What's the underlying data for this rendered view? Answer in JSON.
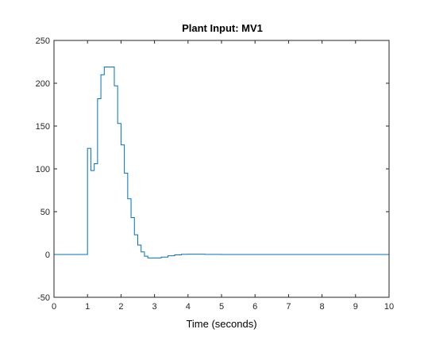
{
  "chart_data": {
    "type": "line",
    "step": true,
    "title": "Plant Input:  MV1",
    "xlabel": "Time (seconds)",
    "ylabel": "",
    "xlim": [
      0,
      10
    ],
    "ylim": [
      -50,
      250
    ],
    "xticks": [
      0,
      1,
      2,
      3,
      4,
      5,
      6,
      7,
      8,
      9,
      10
    ],
    "yticks": [
      -50,
      0,
      50,
      100,
      150,
      200,
      250
    ],
    "xtick_labels": [
      "0",
      "1",
      "2",
      "3",
      "4",
      "5",
      "6",
      "7",
      "8",
      "9",
      "10"
    ],
    "ytick_labels": [
      "-50",
      "0",
      "50",
      "100",
      "150",
      "200",
      "250"
    ],
    "grid": false,
    "legend": "none",
    "series": [
      {
        "color": "#0072BD",
        "x": [
          0,
          1.0,
          1.1,
          1.2,
          1.3,
          1.4,
          1.5,
          1.6,
          1.7,
          1.8,
          1.9,
          2.0,
          2.1,
          2.2,
          2.3,
          2.4,
          2.5,
          2.6,
          2.7,
          2.8,
          2.9,
          3.0,
          3.2,
          3.4,
          3.6,
          3.8,
          4.0,
          4.2,
          4.5,
          5.0,
          6.0,
          7.0,
          8.0,
          9.0,
          10.0
        ],
        "y": [
          0,
          124,
          98,
          106,
          182,
          210,
          219,
          219,
          219,
          197,
          153,
          128,
          95,
          65,
          43,
          23,
          11,
          3,
          -2,
          -4,
          -4,
          -4,
          -3,
          -1.5,
          -0.5,
          0.2,
          0.3,
          0.3,
          0.1,
          0,
          0,
          0,
          0,
          0,
          0
        ]
      }
    ]
  },
  "style": {
    "axes_color": "#262626",
    "line_color": "#0072BD",
    "background": "#ffffff"
  }
}
